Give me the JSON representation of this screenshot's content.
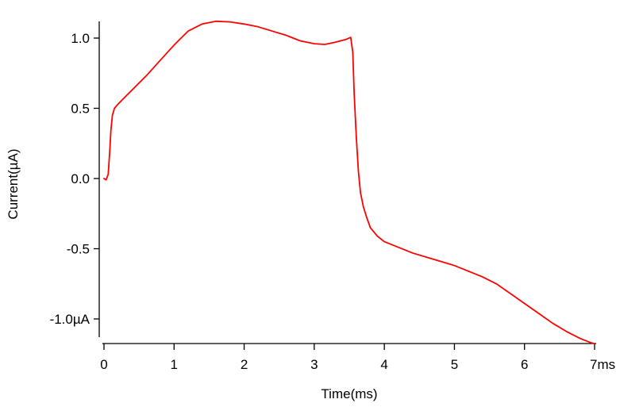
{
  "chart_data": {
    "type": "line",
    "title": "",
    "xlabel": "Time(ms)",
    "ylabel": "Current(µA)",
    "xlim": [
      0,
      7
    ],
    "ylim": [
      -1.18,
      1.12
    ],
    "x_ticks": [
      {
        "value": 0,
        "label": "0"
      },
      {
        "value": 1,
        "label": "1"
      },
      {
        "value": 2,
        "label": "2"
      },
      {
        "value": 3,
        "label": "3"
      },
      {
        "value": 4,
        "label": "4"
      },
      {
        "value": 5,
        "label": "5"
      },
      {
        "value": 6,
        "label": "6"
      },
      {
        "value": 7,
        "label": "7ms"
      }
    ],
    "y_ticks": [
      {
        "value": 1.0,
        "label": "1.0"
      },
      {
        "value": 0.5,
        "label": "0.5"
      },
      {
        "value": 0.0,
        "label": "0.0"
      },
      {
        "value": -0.5,
        "label": "-0.5"
      },
      {
        "value": -1.0,
        "label": "-1.0µA"
      }
    ],
    "grid": false,
    "legend": "none",
    "series": [
      {
        "color": "#ff0000",
        "x": [
          0,
          0.03,
          0.06,
          0.08,
          0.1,
          0.12,
          0.15,
          0.2,
          0.3,
          0.4,
          0.6,
          0.8,
          1.0,
          1.2,
          1.4,
          1.6,
          1.8,
          2.0,
          2.2,
          2.4,
          2.6,
          2.8,
          3.0,
          3.15,
          3.3,
          3.45,
          3.52,
          3.55,
          3.57,
          3.6,
          3.63,
          3.66,
          3.7,
          3.75,
          3.8,
          3.9,
          4.0,
          4.2,
          4.4,
          4.6,
          4.8,
          5.0,
          5.2,
          5.4,
          5.6,
          5.8,
          6.0,
          6.2,
          6.4,
          6.6,
          6.8,
          6.95,
          7.0
        ],
        "y": [
          0.0,
          -0.01,
          0.03,
          0.18,
          0.35,
          0.45,
          0.5,
          0.53,
          0.58,
          0.63,
          0.73,
          0.84,
          0.95,
          1.05,
          1.1,
          1.12,
          1.115,
          1.1,
          1.08,
          1.05,
          1.02,
          0.98,
          0.96,
          0.955,
          0.97,
          0.99,
          1.005,
          0.9,
          0.6,
          0.3,
          0.05,
          -0.1,
          -0.2,
          -0.28,
          -0.35,
          -0.41,
          -0.45,
          -0.49,
          -0.53,
          -0.56,
          -0.59,
          -0.62,
          -0.66,
          -0.7,
          -0.75,
          -0.82,
          -0.89,
          -0.96,
          -1.03,
          -1.09,
          -1.14,
          -1.17,
          -1.175
        ]
      }
    ]
  }
}
